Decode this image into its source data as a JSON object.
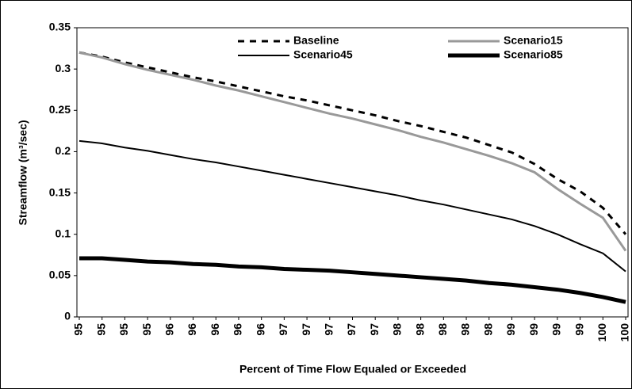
{
  "chart_data": {
    "type": "line",
    "y_label": "Streamflow (m³/sec)",
    "x_label": "Percent  of Time Flow Equaled or Exceeded",
    "categories": [
      "95",
      "95",
      "95",
      "95",
      "96",
      "96",
      "96",
      "96",
      "96",
      "97",
      "97",
      "97",
      "97",
      "97",
      "98",
      "98",
      "98",
      "98",
      "98",
      "99",
      "99",
      "99",
      "99",
      "100",
      "100"
    ],
    "series": [
      {
        "name": "Baseline",
        "color": "#000000",
        "style": "dashed",
        "values": [
          0.32,
          0.315,
          0.308,
          0.302,
          0.296,
          0.29,
          0.285,
          0.279,
          0.273,
          0.267,
          0.262,
          0.256,
          0.25,
          0.244,
          0.237,
          0.231,
          0.224,
          0.217,
          0.208,
          0.199,
          0.185,
          0.167,
          0.152,
          0.132,
          0.1
        ]
      },
      {
        "name": "Scenario15",
        "color": "#999999",
        "style": "medium",
        "values": [
          0.32,
          0.314,
          0.306,
          0.299,
          0.293,
          0.287,
          0.28,
          0.274,
          0.267,
          0.26,
          0.253,
          0.246,
          0.24,
          0.233,
          0.226,
          0.218,
          0.211,
          0.203,
          0.195,
          0.186,
          0.175,
          0.155,
          0.137,
          0.12,
          0.08
        ]
      },
      {
        "name": "Scenario45",
        "color": "#000000",
        "style": "thin",
        "values": [
          0.213,
          0.21,
          0.205,
          0.201,
          0.196,
          0.191,
          0.187,
          0.182,
          0.177,
          0.172,
          0.167,
          0.162,
          0.157,
          0.152,
          0.147,
          0.141,
          0.136,
          0.13,
          0.124,
          0.118,
          0.11,
          0.1,
          0.088,
          0.077,
          0.055
        ]
      },
      {
        "name": "Scenario85",
        "color": "#000000",
        "style": "thick",
        "values": [
          0.071,
          0.071,
          0.069,
          0.067,
          0.066,
          0.064,
          0.063,
          0.061,
          0.06,
          0.058,
          0.057,
          0.056,
          0.054,
          0.052,
          0.05,
          0.048,
          0.046,
          0.044,
          0.041,
          0.039,
          0.036,
          0.033,
          0.029,
          0.024,
          0.018
        ]
      }
    ],
    "ylim": [
      0,
      0.35
    ],
    "yticks": [
      0,
      0.05,
      0.1,
      0.15,
      0.2,
      0.25,
      0.3,
      0.35
    ],
    "grid": false,
    "legend": "top"
  }
}
